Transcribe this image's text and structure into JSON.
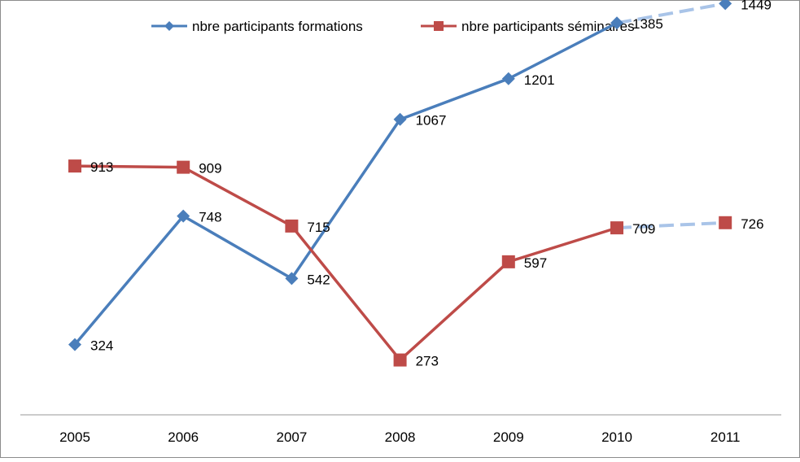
{
  "chart_data": {
    "type": "line",
    "x": [
      "2005",
      "2006",
      "2007",
      "2008",
      "2009",
      "2010",
      "2011"
    ],
    "series": [
      {
        "name": "nbre participants formations",
        "values": [
          324,
          748,
          542,
          1067,
          1201,
          1385,
          1449
        ],
        "color": "#4A7EBB",
        "marker": "diamond",
        "dashed_from_index": 5
      },
      {
        "name": "nbre participants séminaires",
        "values": [
          913,
          909,
          715,
          273,
          597,
          709,
          726
        ],
        "color": "#BE4B48",
        "marker": "square",
        "dashed_from_index": 5
      }
    ],
    "ylim": [
      0,
      1600
    ],
    "grid": false,
    "legend": "top-center",
    "data_labels": true,
    "dashed_line_color": "#A9C4E8"
  }
}
